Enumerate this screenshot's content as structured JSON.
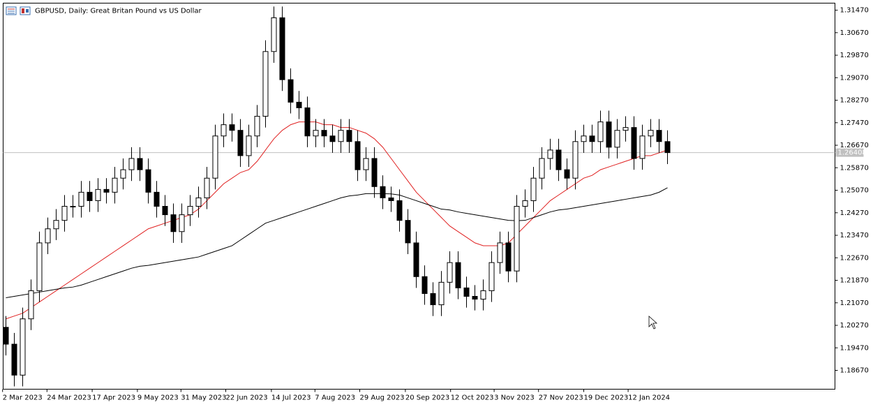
{
  "chart_data": {
    "type": "candlestick",
    "title": "GBPUSD, Daily:  Great Britan Pound vs US Dollar",
    "candle_color": "#000000",
    "up_fill": "#ffffff",
    "down_fill": "#000000",
    "open": [
      1.202,
      1.196,
      1.185,
      1.205,
      1.215,
      1.232,
      1.237,
      1.24,
      1.245,
      1.245,
      1.25,
      1.247,
      1.251,
      1.25,
      1.255,
      1.258,
      1.262,
      1.258,
      1.25,
      1.245,
      1.242,
      1.236,
      1.242,
      1.245,
      1.248,
      1.255,
      1.27,
      1.274,
      1.272,
      1.263,
      1.27,
      1.277,
      1.3,
      1.312,
      1.29,
      1.282,
      1.28,
      1.27,
      1.272,
      1.27,
      1.268,
      1.272,
      1.268,
      1.258,
      1.262,
      1.252,
      1.248,
      1.247,
      1.24,
      1.232,
      1.22,
      1.214,
      1.21,
      1.218,
      1.225,
      1.216,
      1.213,
      1.212,
      1.215,
      1.225,
      1.232,
      1.222,
      1.245,
      1.247,
      1.255,
      1.262,
      1.265,
      1.258,
      1.255,
      1.268,
      1.27,
      1.268,
      1.275,
      1.266,
      1.272,
      1.273,
      1.262,
      1.27,
      1.272,
      1.268
    ],
    "high": [
      1.206,
      1.2,
      1.209,
      1.219,
      1.236,
      1.241,
      1.244,
      1.249,
      1.249,
      1.254,
      1.254,
      1.255,
      1.255,
      1.259,
      1.262,
      1.266,
      1.266,
      1.262,
      1.254,
      1.249,
      1.246,
      1.246,
      1.249,
      1.252,
      1.259,
      1.274,
      1.278,
      1.278,
      1.276,
      1.274,
      1.281,
      1.304,
      1.316,
      1.316,
      1.294,
      1.286,
      1.284,
      1.276,
      1.276,
      1.274,
      1.276,
      1.276,
      1.272,
      1.266,
      1.266,
      1.256,
      1.252,
      1.251,
      1.244,
      1.236,
      1.224,
      1.218,
      1.222,
      1.229,
      1.229,
      1.22,
      1.217,
      1.219,
      1.229,
      1.236,
      1.236,
      1.249,
      1.251,
      1.259,
      1.266,
      1.269,
      1.269,
      1.262,
      1.272,
      1.274,
      1.274,
      1.279,
      1.279,
      1.276,
      1.277,
      1.277,
      1.274,
      1.276,
      1.276,
      1.272
    ],
    "low": [
      1.192,
      1.181,
      1.181,
      1.201,
      1.211,
      1.228,
      1.233,
      1.236,
      1.241,
      1.241,
      1.243,
      1.243,
      1.246,
      1.246,
      1.251,
      1.254,
      1.254,
      1.246,
      1.241,
      1.238,
      1.232,
      1.232,
      1.238,
      1.241,
      1.244,
      1.251,
      1.266,
      1.268,
      1.259,
      1.259,
      1.266,
      1.273,
      1.296,
      1.286,
      1.278,
      1.276,
      1.266,
      1.266,
      1.266,
      1.264,
      1.264,
      1.264,
      1.254,
      1.254,
      1.248,
      1.244,
      1.243,
      1.236,
      1.228,
      1.216,
      1.21,
      1.206,
      1.206,
      1.214,
      1.212,
      1.209,
      1.208,
      1.208,
      1.211,
      1.221,
      1.218,
      1.218,
      1.241,
      1.243,
      1.251,
      1.258,
      1.254,
      1.251,
      1.251,
      1.264,
      1.264,
      1.264,
      1.262,
      1.262,
      1.268,
      1.258,
      1.258,
      1.266,
      1.264,
      1.26
    ],
    "close": [
      1.196,
      1.185,
      1.205,
      1.215,
      1.232,
      1.237,
      1.24,
      1.245,
      1.245,
      1.25,
      1.247,
      1.251,
      1.25,
      1.255,
      1.258,
      1.262,
      1.258,
      1.25,
      1.245,
      1.242,
      1.236,
      1.242,
      1.245,
      1.248,
      1.255,
      1.27,
      1.274,
      1.272,
      1.263,
      1.27,
      1.277,
      1.3,
      1.312,
      1.29,
      1.282,
      1.28,
      1.27,
      1.272,
      1.27,
      1.268,
      1.272,
      1.268,
      1.258,
      1.262,
      1.252,
      1.248,
      1.247,
      1.24,
      1.232,
      1.22,
      1.214,
      1.21,
      1.218,
      1.225,
      1.216,
      1.213,
      1.212,
      1.215,
      1.225,
      1.232,
      1.222,
      1.245,
      1.247,
      1.255,
      1.262,
      1.265,
      1.258,
      1.255,
      1.268,
      1.27,
      1.268,
      1.275,
      1.266,
      1.272,
      1.273,
      1.262,
      1.27,
      1.272,
      1.268,
      1.26408
    ],
    "moving_averages": [
      {
        "color": "#e02020",
        "values": [
          1.205,
          1.206,
          1.207,
          1.209,
          1.211,
          1.213,
          1.215,
          1.217,
          1.219,
          1.221,
          1.223,
          1.225,
          1.227,
          1.229,
          1.231,
          1.233,
          1.235,
          1.237,
          1.238,
          1.239,
          1.24,
          1.241,
          1.242,
          1.244,
          1.247,
          1.25,
          1.253,
          1.255,
          1.257,
          1.258,
          1.261,
          1.265,
          1.269,
          1.272,
          1.274,
          1.275,
          1.275,
          1.275,
          1.274,
          1.274,
          1.273,
          1.273,
          1.272,
          1.271,
          1.269,
          1.266,
          1.262,
          1.258,
          1.254,
          1.25,
          1.247,
          1.244,
          1.241,
          1.238,
          1.236,
          1.234,
          1.232,
          1.231,
          1.231,
          1.231,
          1.232,
          1.235,
          1.238,
          1.241,
          1.244,
          1.247,
          1.249,
          1.251,
          1.253,
          1.255,
          1.256,
          1.258,
          1.259,
          1.26,
          1.261,
          1.262,
          1.263,
          1.263,
          1.264,
          1.265
        ]
      },
      {
        "color": "#000000",
        "values": [
          1.2125,
          1.213,
          1.2135,
          1.214,
          1.2145,
          1.215,
          1.2155,
          1.216,
          1.2163,
          1.217,
          1.218,
          1.219,
          1.22,
          1.221,
          1.222,
          1.223,
          1.2237,
          1.224,
          1.2245,
          1.225,
          1.2255,
          1.226,
          1.2265,
          1.227,
          1.228,
          1.229,
          1.23,
          1.231,
          1.233,
          1.235,
          1.237,
          1.239,
          1.24,
          1.241,
          1.242,
          1.243,
          1.244,
          1.245,
          1.246,
          1.247,
          1.248,
          1.2487,
          1.249,
          1.2495,
          1.2495,
          1.2495,
          1.2494,
          1.249,
          1.248,
          1.247,
          1.246,
          1.245,
          1.244,
          1.2437,
          1.243,
          1.2425,
          1.242,
          1.2415,
          1.241,
          1.2405,
          1.24,
          1.2399,
          1.24,
          1.241,
          1.242,
          1.243,
          1.2437,
          1.244,
          1.2445,
          1.245,
          1.2455,
          1.246,
          1.2465,
          1.247,
          1.2475,
          1.248,
          1.2485,
          1.249,
          1.25,
          1.2516
        ]
      }
    ],
    "last_price": 1.26408,
    "last_price_color": "#c0c0c0",
    "xlim": [
      -0.333,
      99
    ],
    "xticks": [
      {
        "value": -0.4,
        "label": "2 Mar 2023"
      },
      {
        "value": 4.9,
        "label": "24 Mar 2023"
      },
      {
        "value": 10.3,
        "label": "17 Apr 2023"
      },
      {
        "value": 15.7,
        "label": "9 May 2023"
      },
      {
        "value": 20.9,
        "label": "31 May 2023"
      },
      {
        "value": 26.25,
        "label": "22 Jun 2023"
      },
      {
        "value": 31.7,
        "label": "14 Jul 2023"
      },
      {
        "value": 36.9,
        "label": "7 Aug 2023"
      },
      {
        "value": 42.25,
        "label": "29 Aug 2023"
      },
      {
        "value": 47.7,
        "label": "20 Sep 2023"
      },
      {
        "value": 53.1,
        "label": "12 Oct 2023"
      },
      {
        "value": 58.3,
        "label": "3 Nov 2023"
      },
      {
        "value": 63.6,
        "label": "27 Nov 2023"
      },
      {
        "value": 69,
        "label": "19 Dec 2023"
      },
      {
        "value": 74.3,
        "label": "12 Jan 2024"
      }
    ],
    "ylim": [
      1.18,
      1.3172
    ],
    "yticks": [
      {
        "value": 1.1867,
        "label": "1.18670"
      },
      {
        "value": 1.1947,
        "label": "1.19470"
      },
      {
        "value": 1.2027,
        "label": "1.20270"
      },
      {
        "value": 1.2107,
        "label": "1.21070"
      },
      {
        "value": 1.2187,
        "label": "1.21870"
      },
      {
        "value": 1.2267,
        "label": "1.22670"
      },
      {
        "value": 1.2347,
        "label": "1.23470"
      },
      {
        "value": 1.2427,
        "label": "1.24270"
      },
      {
        "value": 1.2507,
        "label": "1.25070"
      },
      {
        "value": 1.2587,
        "label": "1.25870"
      },
      {
        "value": 1.2667,
        "label": "1.26670"
      },
      {
        "value": 1.2747,
        "label": "1.27470"
      },
      {
        "value": 1.2827,
        "label": "1.28270"
      },
      {
        "value": 1.2907,
        "label": "1.29070"
      },
      {
        "value": 1.2987,
        "label": "1.29870"
      },
      {
        "value": 1.3067,
        "label": "1.30670"
      },
      {
        "value": 1.3147,
        "label": "1.31470"
      }
    ]
  }
}
